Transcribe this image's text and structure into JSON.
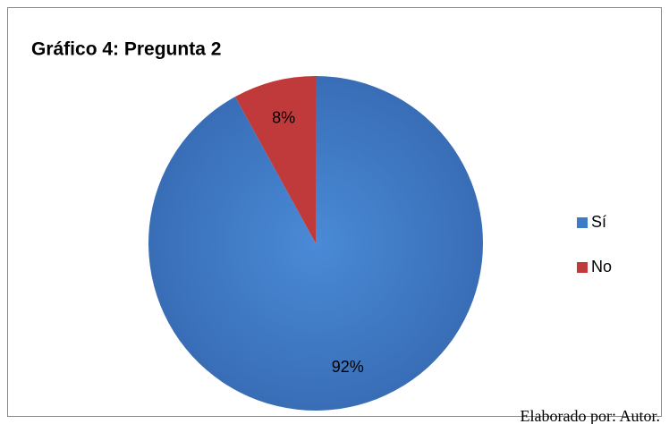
{
  "chart_data": {
    "type": "pie",
    "title": "Gráfico 4: Pregunta 2",
    "categories": [
      "Sí",
      "No"
    ],
    "values": [
      92,
      8
    ],
    "value_labels": [
      "92%",
      "8%"
    ],
    "colors": [
      "#3d7cc9",
      "#c0393b"
    ],
    "legend": "right",
    "source": "Elaborado por: Autor."
  }
}
